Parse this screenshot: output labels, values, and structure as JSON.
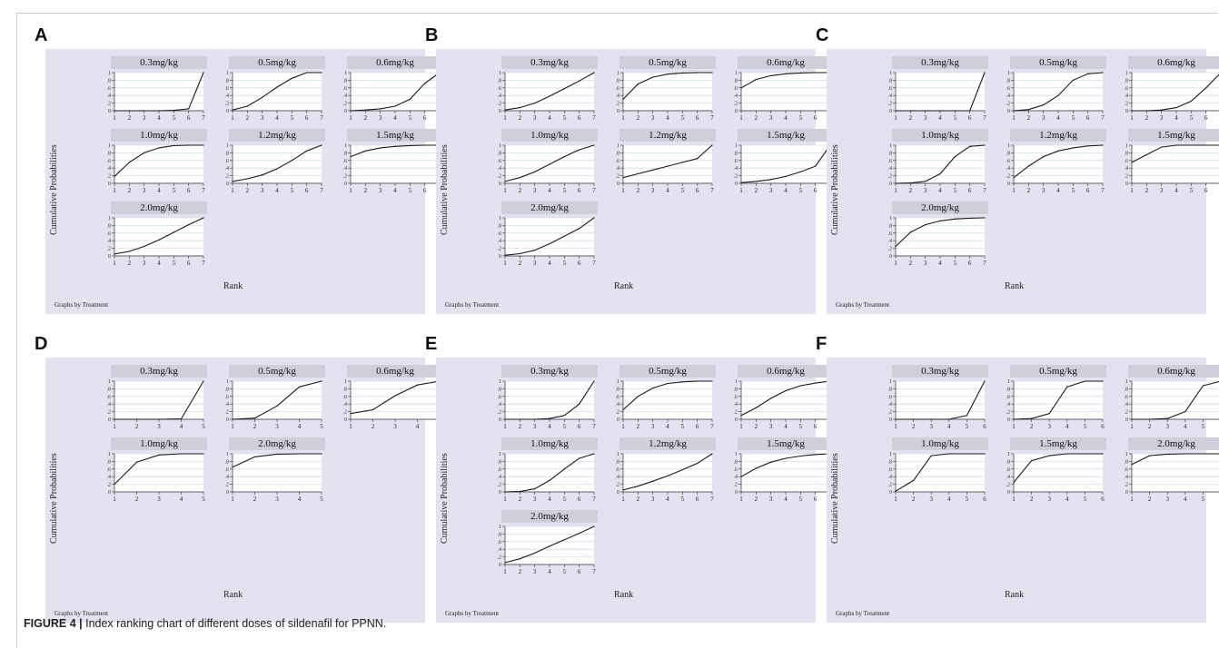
{
  "figure": {
    "caption_label": "FIGURE 4 |",
    "caption_text": " Index ranking chart of different doses of sildenafil for PPNN."
  },
  "chart_data": [
    {
      "panel": "A",
      "type": "line",
      "ylabel": "Cumulative Probabilities",
      "xlabel": "Rank",
      "footnote": "Graphs by Treatment",
      "x": [
        1,
        2,
        3,
        4,
        5,
        6,
        7
      ],
      "ylim": [
        0,
        1
      ],
      "ytick_labels": [
        "0",
        ".2",
        ".4",
        ".6",
        ".8",
        "1"
      ],
      "series": [
        {
          "name": "0.3mg/kg",
          "values": [
            0,
            0,
            0,
            0,
            0.01,
            0.05,
            1
          ]
        },
        {
          "name": "0.5mg/kg",
          "values": [
            0.02,
            0.12,
            0.35,
            0.62,
            0.85,
            1,
            1
          ]
        },
        {
          "name": "0.6mg/kg",
          "values": [
            0,
            0.02,
            0.05,
            0.12,
            0.3,
            0.72,
            1
          ]
        },
        {
          "name": "1.0mg/kg",
          "values": [
            0.18,
            0.55,
            0.8,
            0.93,
            0.99,
            1,
            1
          ]
        },
        {
          "name": "1.2mg/kg",
          "values": [
            0.05,
            0.12,
            0.22,
            0.38,
            0.6,
            0.85,
            1
          ]
        },
        {
          "name": "1.5mg/kg",
          "values": [
            0.7,
            0.85,
            0.93,
            0.97,
            0.99,
            1,
            1
          ]
        },
        {
          "name": "2.0mg/kg",
          "values": [
            0.05,
            0.12,
            0.25,
            0.42,
            0.62,
            0.82,
            1
          ]
        }
      ]
    },
    {
      "panel": "B",
      "type": "line",
      "ylabel": "Cumulative Probabilities",
      "xlabel": "Rank",
      "footnote": "Graphs by Treatment",
      "x": [
        1,
        2,
        3,
        4,
        5,
        6,
        7
      ],
      "ylim": [
        0,
        1
      ],
      "ytick_labels": [
        "0",
        ".2",
        ".4",
        ".6",
        ".8",
        "1"
      ],
      "series": [
        {
          "name": "0.3mg/kg",
          "values": [
            0.02,
            0.08,
            0.2,
            0.38,
            0.58,
            0.78,
            1
          ]
        },
        {
          "name": "0.5mg/kg",
          "values": [
            0.3,
            0.7,
            0.88,
            0.96,
            0.99,
            1,
            1
          ]
        },
        {
          "name": "0.6mg/kg",
          "values": [
            0.6,
            0.82,
            0.92,
            0.97,
            0.99,
            1,
            1
          ]
        },
        {
          "name": "1.0mg/kg",
          "values": [
            0.05,
            0.15,
            0.3,
            0.5,
            0.7,
            0.88,
            1
          ]
        },
        {
          "name": "1.2mg/kg",
          "values": [
            0.15,
            0.25,
            0.35,
            0.45,
            0.55,
            0.65,
            1
          ]
        },
        {
          "name": "1.5mg/kg",
          "values": [
            0.02,
            0.05,
            0.1,
            0.18,
            0.3,
            0.45,
            1
          ]
        },
        {
          "name": "2.0mg/kg",
          "values": [
            0.02,
            0.06,
            0.15,
            0.32,
            0.52,
            0.72,
            1
          ]
        }
      ]
    },
    {
      "panel": "C",
      "type": "line",
      "ylabel": "Cumulative Probabilities",
      "xlabel": "Rank",
      "footnote": "Graphs by Treatment",
      "x": [
        1,
        2,
        3,
        4,
        5,
        6,
        7
      ],
      "ylim": [
        0,
        1
      ],
      "ytick_labels": [
        "0",
        ".2",
        ".4",
        ".6",
        ".8",
        "1"
      ],
      "series": [
        {
          "name": "0.3mg/kg",
          "values": [
            0,
            0,
            0,
            0,
            0,
            0,
            1
          ]
        },
        {
          "name": "0.5mg/kg",
          "values": [
            0,
            0.03,
            0.15,
            0.4,
            0.8,
            0.97,
            1
          ]
        },
        {
          "name": "0.6mg/kg",
          "values": [
            0,
            0,
            0.02,
            0.08,
            0.25,
            0.6,
            1
          ]
        },
        {
          "name": "1.0mg/kg",
          "values": [
            0,
            0.01,
            0.05,
            0.25,
            0.7,
            0.97,
            1
          ]
        },
        {
          "name": "1.2mg/kg",
          "values": [
            0.15,
            0.45,
            0.7,
            0.85,
            0.93,
            0.98,
            1
          ]
        },
        {
          "name": "1.5mg/kg",
          "values": [
            0.55,
            0.75,
            0.95,
            1,
            1,
            1,
            1
          ]
        },
        {
          "name": "2.0mg/kg",
          "values": [
            0.25,
            0.62,
            0.82,
            0.92,
            0.97,
            0.99,
            1
          ]
        }
      ]
    },
    {
      "panel": "D",
      "type": "line",
      "ylabel": "Cumulative Probabilities",
      "xlabel": "Rank",
      "footnote": "Graphs by Treatment",
      "x": [
        1,
        2,
        3,
        4,
        5
      ],
      "ylim": [
        0,
        1
      ],
      "ytick_labels": [
        "0",
        ".2",
        ".4",
        ".6",
        ".8",
        "1"
      ],
      "series": [
        {
          "name": "0.3mg/kg",
          "values": [
            0,
            0,
            0,
            0.01,
            1
          ]
        },
        {
          "name": "0.5mg/kg",
          "values": [
            0,
            0.03,
            0.35,
            0.85,
            1
          ]
        },
        {
          "name": "0.6mg/kg",
          "values": [
            0.15,
            0.25,
            0.62,
            0.9,
            1
          ]
        },
        {
          "name": "1.0mg/kg",
          "values": [
            0.2,
            0.78,
            0.97,
            1,
            1
          ]
        },
        {
          "name": "2.0mg/kg",
          "values": [
            0.65,
            0.92,
            0.99,
            1,
            1
          ]
        }
      ]
    },
    {
      "panel": "E",
      "type": "line",
      "ylabel": "Cumulative Probabilities",
      "xlabel": "Rank",
      "footnote": "Graphs by Treatment",
      "x": [
        1,
        2,
        3,
        4,
        5,
        6,
        7
      ],
      "ylim": [
        0,
        1
      ],
      "ytick_labels": [
        "0",
        ".2",
        ".4",
        ".6",
        ".8",
        "1"
      ],
      "series": [
        {
          "name": "0.3mg/kg",
          "values": [
            0,
            0,
            0,
            0.02,
            0.1,
            0.4,
            1
          ]
        },
        {
          "name": "0.5mg/kg",
          "values": [
            0.25,
            0.6,
            0.82,
            0.94,
            0.98,
            1,
            1
          ]
        },
        {
          "name": "0.6mg/kg",
          "values": [
            0.1,
            0.3,
            0.55,
            0.75,
            0.88,
            0.95,
            1
          ]
        },
        {
          "name": "1.0mg/kg",
          "values": [
            0,
            0.01,
            0.08,
            0.3,
            0.6,
            0.88,
            1
          ]
        },
        {
          "name": "1.2mg/kg",
          "values": [
            0.05,
            0.15,
            0.28,
            0.42,
            0.58,
            0.75,
            1
          ]
        },
        {
          "name": "1.5mg/kg",
          "values": [
            0.4,
            0.62,
            0.78,
            0.88,
            0.94,
            0.98,
            1
          ]
        },
        {
          "name": "2.0mg/kg",
          "values": [
            0.05,
            0.15,
            0.3,
            0.48,
            0.65,
            0.82,
            1
          ]
        }
      ]
    },
    {
      "panel": "F",
      "type": "line",
      "ylabel": "Cumulative Probabilities",
      "xlabel": "Rank",
      "footnote": "Graphs by Treatment",
      "x": [
        1,
        2,
        3,
        4,
        5,
        6
      ],
      "ylim": [
        0,
        1
      ],
      "ytick_labels": [
        "0",
        ".2",
        ".4",
        ".6",
        ".8",
        "1"
      ],
      "series": [
        {
          "name": "0.3mg/kg",
          "values": [
            0,
            0,
            0,
            0,
            0.1,
            1
          ]
        },
        {
          "name": "0.5mg/kg",
          "values": [
            0,
            0.02,
            0.15,
            0.85,
            1,
            1
          ]
        },
        {
          "name": "0.6mg/kg",
          "values": [
            0,
            0,
            0.02,
            0.2,
            0.88,
            1
          ]
        },
        {
          "name": "1.0mg/kg",
          "values": [
            0.02,
            0.3,
            0.95,
            1,
            1,
            1
          ]
        },
        {
          "name": "1.5mg/kg",
          "values": [
            0.25,
            0.82,
            0.95,
            1,
            1,
            1
          ]
        },
        {
          "name": "2.0mg/kg",
          "values": [
            0.72,
            0.95,
            0.99,
            1,
            1,
            1
          ]
        }
      ]
    }
  ]
}
